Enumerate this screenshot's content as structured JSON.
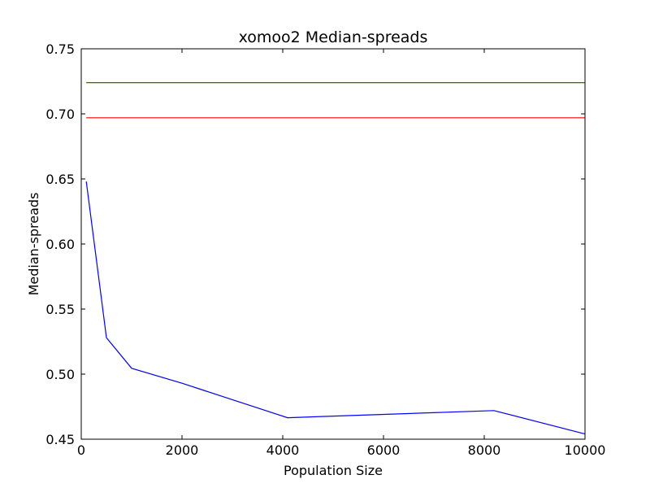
{
  "chart_data": {
    "type": "line",
    "title": "xomoo2 Median-spreads",
    "xlabel": "Population Size",
    "ylabel": "Median-spreads",
    "xlim": [
      0,
      10000
    ],
    "ylim": [
      0.45,
      0.75
    ],
    "xticks": [
      0,
      2000,
      4000,
      6000,
      8000,
      10000
    ],
    "xtick_labels": [
      "0",
      "2000",
      "4000",
      "6000",
      "8000",
      "10000"
    ],
    "yticks": [
      0.45,
      0.5,
      0.55,
      0.6,
      0.65,
      0.7,
      0.75
    ],
    "ytick_labels": [
      "0.45",
      "0.50",
      "0.55",
      "0.60",
      "0.65",
      "0.70",
      "0.75"
    ],
    "grid": false,
    "series": [
      {
        "color": "#0000ff",
        "x": [
          100,
          500,
          1000,
          2000,
          4096,
          8192,
          10000
        ],
        "y": [
          0.648,
          0.528,
          0.5045,
          0.493,
          0.4665,
          0.472,
          0.454
        ]
      },
      {
        "color": "#008000",
        "x": [
          100,
          10000
        ],
        "y": [
          0.724,
          0.724
        ]
      },
      {
        "color": "#ff0000",
        "x": [
          100,
          10000
        ],
        "y": [
          0.697,
          0.697
        ]
      }
    ]
  }
}
